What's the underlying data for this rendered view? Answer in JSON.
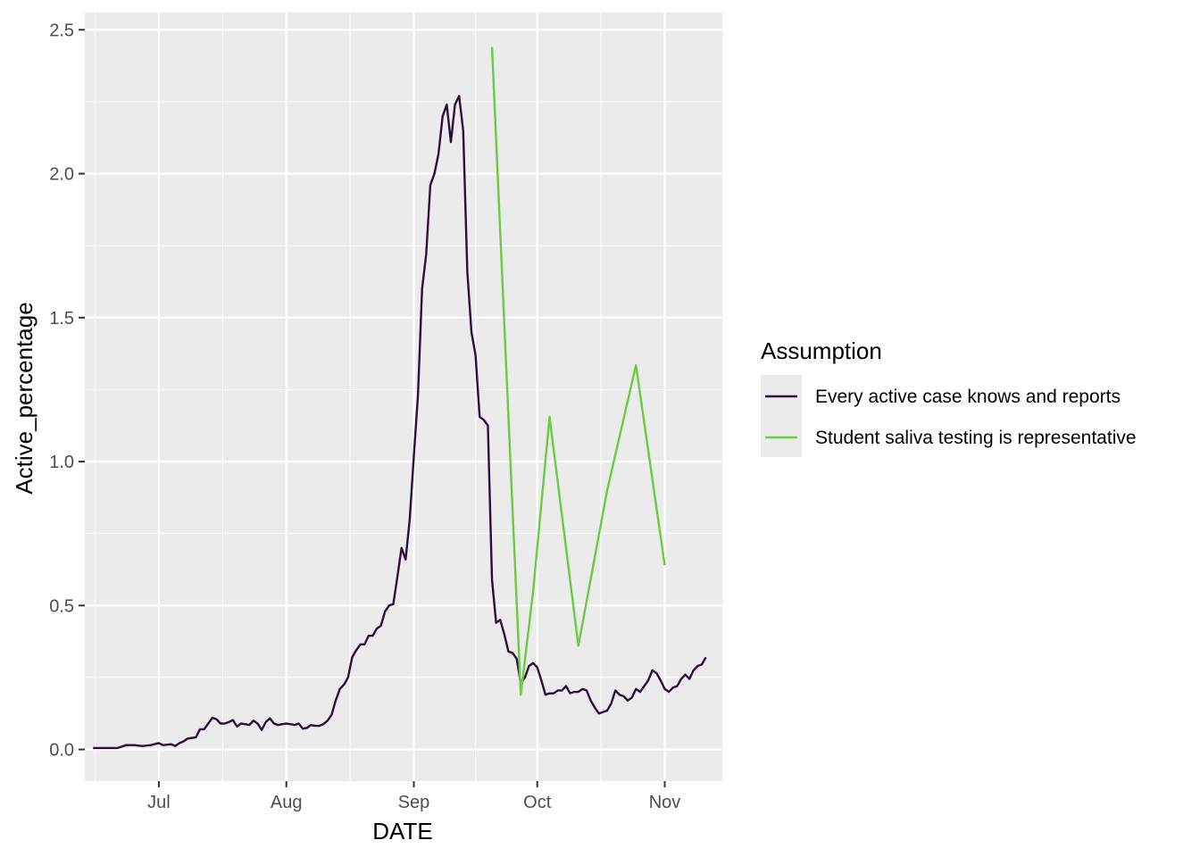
{
  "chart_data": {
    "type": "line",
    "xlabel": "DATE",
    "ylabel": "Active_percentage",
    "x_ticks": [
      {
        "date": "2020-07-01",
        "label": "Jul"
      },
      {
        "date": "2020-08-01",
        "label": "Aug"
      },
      {
        "date": "2020-09-01",
        "label": "Sep"
      },
      {
        "date": "2020-10-01",
        "label": "Oct"
      },
      {
        "date": "2020-11-01",
        "label": "Nov"
      }
    ],
    "y_ticks": [
      "0.0",
      "0.5",
      "1.0",
      "1.5",
      "2.0",
      "2.5"
    ],
    "xlim": [
      "2020-06-13",
      "2020-11-15"
    ],
    "ylim": [
      -0.11,
      2.56
    ],
    "grid": true,
    "legend": {
      "title": "Assumption",
      "position": "right"
    },
    "series": [
      {
        "name": "Every active case knows and reports",
        "color": "#2D0F3E",
        "points": [
          [
            "2020-06-15",
            0.005
          ],
          [
            "2020-06-18",
            0.005
          ],
          [
            "2020-06-21",
            0.005
          ],
          [
            "2020-06-23",
            0.015
          ],
          [
            "2020-06-25",
            0.015
          ],
          [
            "2020-06-27",
            0.012
          ],
          [
            "2020-06-29",
            0.015
          ],
          [
            "2020-07-01",
            0.022
          ],
          [
            "2020-07-02",
            0.015
          ],
          [
            "2020-07-04",
            0.018
          ],
          [
            "2020-07-05",
            0.012
          ],
          [
            "2020-07-06",
            0.022
          ],
          [
            "2020-07-07",
            0.028
          ],
          [
            "2020-07-08",
            0.038
          ],
          [
            "2020-07-10",
            0.042
          ],
          [
            "2020-07-11",
            0.07
          ],
          [
            "2020-07-12",
            0.07
          ],
          [
            "2020-07-13",
            0.09
          ],
          [
            "2020-07-14",
            0.11
          ],
          [
            "2020-07-15",
            0.105
          ],
          [
            "2020-07-16",
            0.09
          ],
          [
            "2020-07-17",
            0.09
          ],
          [
            "2020-07-18",
            0.095
          ],
          [
            "2020-07-19",
            0.102
          ],
          [
            "2020-07-20",
            0.08
          ],
          [
            "2020-07-21",
            0.09
          ],
          [
            "2020-07-22",
            0.088
          ],
          [
            "2020-07-23",
            0.085
          ],
          [
            "2020-07-24",
            0.1
          ],
          [
            "2020-07-25",
            0.09
          ],
          [
            "2020-07-26",
            0.068
          ],
          [
            "2020-07-27",
            0.095
          ],
          [
            "2020-07-28",
            0.108
          ],
          [
            "2020-07-29",
            0.09
          ],
          [
            "2020-07-30",
            0.085
          ],
          [
            "2020-07-31",
            0.088
          ],
          [
            "2020-08-01",
            0.09
          ],
          [
            "2020-08-02",
            0.088
          ],
          [
            "2020-08-03",
            0.085
          ],
          [
            "2020-08-04",
            0.09
          ],
          [
            "2020-08-05",
            0.072
          ],
          [
            "2020-08-06",
            0.075
          ],
          [
            "2020-08-07",
            0.085
          ],
          [
            "2020-08-08",
            0.082
          ],
          [
            "2020-08-09",
            0.082
          ],
          [
            "2020-08-10",
            0.088
          ],
          [
            "2020-08-11",
            0.1
          ],
          [
            "2020-08-12",
            0.12
          ],
          [
            "2020-08-13",
            0.17
          ],
          [
            "2020-08-14",
            0.21
          ],
          [
            "2020-08-15",
            0.225
          ],
          [
            "2020-08-16",
            0.25
          ],
          [
            "2020-08-17",
            0.32
          ],
          [
            "2020-08-18",
            0.345
          ],
          [
            "2020-08-19",
            0.365
          ],
          [
            "2020-08-20",
            0.365
          ],
          [
            "2020-08-21",
            0.395
          ],
          [
            "2020-08-22",
            0.395
          ],
          [
            "2020-08-23",
            0.42
          ],
          [
            "2020-08-24",
            0.43
          ],
          [
            "2020-08-25",
            0.48
          ],
          [
            "2020-08-26",
            0.5
          ],
          [
            "2020-08-27",
            0.505
          ],
          [
            "2020-08-28",
            0.6
          ],
          [
            "2020-08-29",
            0.7
          ],
          [
            "2020-08-30",
            0.66
          ],
          [
            "2020-08-31",
            0.8
          ],
          [
            "2020-09-01",
            1.02
          ],
          [
            "2020-09-02",
            1.23
          ],
          [
            "2020-09-03",
            1.6
          ],
          [
            "2020-09-04",
            1.72
          ],
          [
            "2020-09-05",
            1.96
          ],
          [
            "2020-09-06",
            2.0
          ],
          [
            "2020-09-07",
            2.07
          ],
          [
            "2020-09-08",
            2.2
          ],
          [
            "2020-09-09",
            2.24
          ],
          [
            "2020-09-10",
            2.11
          ],
          [
            "2020-09-11",
            2.24
          ],
          [
            "2020-09-12",
            2.27
          ],
          [
            "2020-09-13",
            2.15
          ],
          [
            "2020-09-14",
            1.66
          ],
          [
            "2020-09-15",
            1.45
          ],
          [
            "2020-09-16",
            1.37
          ],
          [
            "2020-09-17",
            1.155
          ],
          [
            "2020-09-18",
            1.145
          ],
          [
            "2020-09-19",
            1.125
          ],
          [
            "2020-09-20",
            0.59
          ],
          [
            "2020-09-21",
            0.44
          ],
          [
            "2020-09-22",
            0.45
          ],
          [
            "2020-09-23",
            0.4
          ],
          [
            "2020-09-24",
            0.34
          ],
          [
            "2020-09-25",
            0.335
          ],
          [
            "2020-09-26",
            0.315
          ],
          [
            "2020-09-27",
            0.23
          ],
          [
            "2020-09-28",
            0.25
          ],
          [
            "2020-09-29",
            0.29
          ],
          [
            "2020-09-30",
            0.3
          ],
          [
            "2020-10-01",
            0.285
          ],
          [
            "2020-10-02",
            0.24
          ],
          [
            "2020-10-03",
            0.19
          ],
          [
            "2020-10-04",
            0.195
          ],
          [
            "2020-10-05",
            0.195
          ],
          [
            "2020-10-06",
            0.205
          ],
          [
            "2020-10-07",
            0.205
          ],
          [
            "2020-10-08",
            0.22
          ],
          [
            "2020-10-09",
            0.195
          ],
          [
            "2020-10-10",
            0.2
          ],
          [
            "2020-10-11",
            0.2
          ],
          [
            "2020-10-12",
            0.21
          ],
          [
            "2020-10-13",
            0.205
          ],
          [
            "2020-10-14",
            0.17
          ],
          [
            "2020-10-15",
            0.145
          ],
          [
            "2020-10-16",
            0.125
          ],
          [
            "2020-10-17",
            0.13
          ],
          [
            "2020-10-18",
            0.135
          ],
          [
            "2020-10-19",
            0.16
          ],
          [
            "2020-10-20",
            0.205
          ],
          [
            "2020-10-21",
            0.19
          ],
          [
            "2020-10-22",
            0.185
          ],
          [
            "2020-10-23",
            0.17
          ],
          [
            "2020-10-24",
            0.18
          ],
          [
            "2020-10-25",
            0.21
          ],
          [
            "2020-10-26",
            0.2
          ],
          [
            "2020-10-27",
            0.22
          ],
          [
            "2020-10-28",
            0.24
          ],
          [
            "2020-10-29",
            0.275
          ],
          [
            "2020-10-30",
            0.265
          ],
          [
            "2020-10-31",
            0.24
          ],
          [
            "2020-11-01",
            0.21
          ],
          [
            "2020-11-02",
            0.2
          ],
          [
            "2020-11-03",
            0.215
          ],
          [
            "2020-11-04",
            0.22
          ],
          [
            "2020-11-05",
            0.245
          ],
          [
            "2020-11-06",
            0.26
          ],
          [
            "2020-11-07",
            0.245
          ],
          [
            "2020-11-08",
            0.275
          ],
          [
            "2020-11-09",
            0.29
          ],
          [
            "2020-11-10",
            0.295
          ],
          [
            "2020-11-11",
            0.32
          ]
        ]
      },
      {
        "name": "Student saliva testing is representative",
        "color": "#6CCB45",
        "points": [
          [
            "2020-09-20",
            2.44
          ],
          [
            "2020-09-27",
            0.19
          ],
          [
            "2020-09-30",
            0.55
          ],
          [
            "2020-10-04",
            1.155
          ],
          [
            "2020-10-11",
            0.36
          ],
          [
            "2020-10-18",
            0.9
          ],
          [
            "2020-10-25",
            1.335
          ],
          [
            "2020-11-01",
            0.64
          ]
        ]
      }
    ]
  }
}
